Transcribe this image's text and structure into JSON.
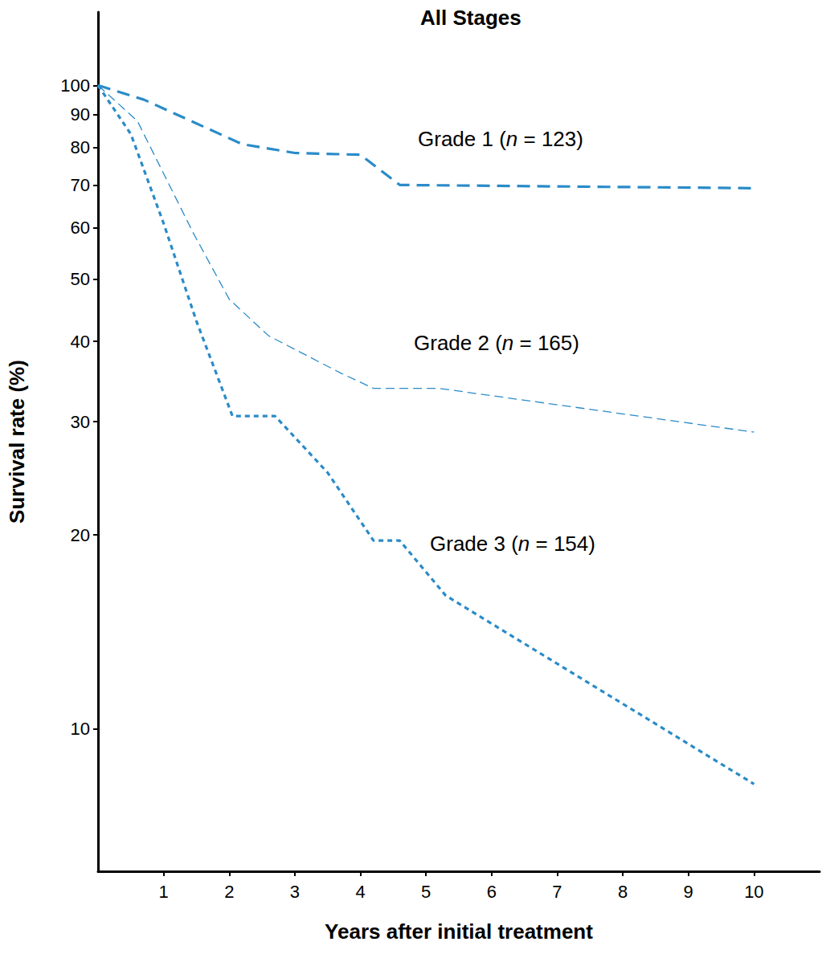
{
  "chart_data": {
    "type": "line",
    "title": "All Stages",
    "x_label": "Years after initial treatment",
    "y_label": "Survival rate (%)",
    "log": "y",
    "grid": false,
    "xlim": [
      0,
      11
    ],
    "xticks": [
      1,
      2,
      3,
      4,
      5,
      6,
      7,
      8,
      9,
      10
    ],
    "ylim": [
      6,
      130
    ],
    "yticks": [
      10,
      20,
      30,
      40,
      50,
      60,
      70,
      80,
      90,
      100
    ],
    "series": [
      {
        "name": "Grade 1 (n = 123)",
        "color": "#2a8bc8",
        "line_style": "longdash",
        "x": [
          0,
          0.7,
          2.2,
          3,
          4,
          4.6,
          10
        ],
        "values": [
          100,
          95,
          81,
          78.5,
          78,
          70,
          69.2
        ]
      },
      {
        "name": "Grade 2 (n = 165)",
        "color": "#2a8bc8",
        "line_style": "dash",
        "x": [
          0,
          0.6,
          1.45,
          2,
          2.6,
          3.7,
          4.2,
          5.2,
          10
        ],
        "values": [
          100,
          88,
          59,
          46.5,
          40.8,
          35.7,
          33.8,
          33.8,
          28.9
        ]
      },
      {
        "name": "Grade 3 (n = 154)",
        "color": "#2a8bc8",
        "line_style": "shortdash",
        "x": [
          0,
          0.5,
          1,
          1.5,
          2.05,
          2.7,
          3.5,
          4.2,
          4.6,
          5.3,
          10
        ],
        "values": [
          100,
          84,
          61,
          43,
          30.6,
          30.6,
          25,
          19.6,
          19.6,
          16.1,
          8.2
        ]
      }
    ]
  }
}
